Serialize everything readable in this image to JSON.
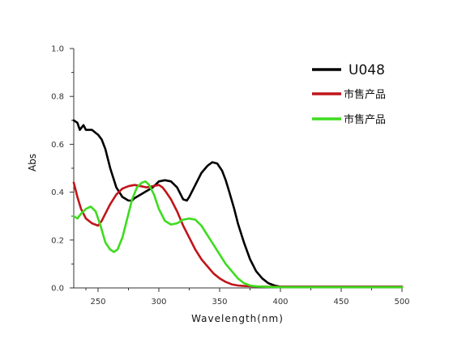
{
  "chart_data": {
    "type": "line",
    "xlabel": "Wavelength(nm)",
    "ylabel": "Abs",
    "xlim": [
      230,
      500
    ],
    "ylim": [
      0.0,
      1.0
    ],
    "xticks": [
      250,
      300,
      350,
      400,
      450,
      500
    ],
    "xtick_labels": [
      "250",
      "300",
      "350",
      "400",
      "450",
      "500"
    ],
    "yticks": [
      0.0,
      0.2,
      0.4,
      0.6,
      0.8,
      1.0
    ],
    "ytick_labels": [
      "0.0",
      "0.2",
      "0.4",
      "0.6",
      "0.8",
      "1.0"
    ],
    "grid": false,
    "legend_position": "top-right",
    "series": [
      {
        "name": "U048",
        "color": "#000000",
        "x": [
          230,
          233,
          235,
          238,
          240,
          245,
          250,
          253,
          256,
          260,
          265,
          270,
          275,
          278,
          280,
          285,
          290,
          295,
          300,
          305,
          310,
          315,
          320,
          323,
          325,
          330,
          335,
          340,
          344,
          348,
          352,
          355,
          358,
          362,
          365,
          370,
          375,
          380,
          385,
          390,
          395,
          400,
          410,
          420,
          430,
          450,
          470,
          490,
          500
        ],
        "y": [
          0.7,
          0.69,
          0.66,
          0.68,
          0.66,
          0.66,
          0.64,
          0.62,
          0.58,
          0.5,
          0.42,
          0.38,
          0.365,
          0.365,
          0.375,
          0.39,
          0.405,
          0.42,
          0.445,
          0.45,
          0.445,
          0.42,
          0.37,
          0.365,
          0.38,
          0.43,
          0.48,
          0.51,
          0.525,
          0.52,
          0.49,
          0.45,
          0.4,
          0.33,
          0.27,
          0.19,
          0.12,
          0.07,
          0.04,
          0.02,
          0.01,
          0.005,
          0.005,
          0.005,
          0.005,
          0.005,
          0.005,
          0.005,
          0.005
        ]
      },
      {
        "name": "市售产品",
        "color": "#c0151b",
        "x": [
          230,
          233,
          236,
          240,
          245,
          250,
          253,
          256,
          260,
          265,
          270,
          275,
          280,
          285,
          290,
          295,
          300,
          303,
          306,
          310,
          315,
          320,
          325,
          330,
          335,
          340,
          345,
          350,
          355,
          360,
          365,
          370,
          380,
          390,
          400,
          420,
          450,
          480,
          500
        ],
        "y": [
          0.44,
          0.38,
          0.33,
          0.29,
          0.27,
          0.26,
          0.28,
          0.31,
          0.35,
          0.39,
          0.415,
          0.425,
          0.43,
          0.425,
          0.42,
          0.425,
          0.43,
          0.42,
          0.4,
          0.37,
          0.32,
          0.26,
          0.21,
          0.16,
          0.12,
          0.09,
          0.06,
          0.04,
          0.025,
          0.015,
          0.01,
          0.008,
          0.006,
          0.005,
          0.005,
          0.005,
          0.005,
          0.005,
          0.005
        ]
      },
      {
        "name": "市售产品",
        "color": "#3ddc1e",
        "x": [
          230,
          233,
          236,
          240,
          244,
          248,
          252,
          256,
          260,
          263,
          266,
          270,
          274,
          278,
          282,
          286,
          289,
          292,
          296,
          300,
          305,
          310,
          315,
          320,
          325,
          330,
          335,
          340,
          345,
          350,
          355,
          360,
          365,
          370,
          375,
          380,
          390,
          400,
          420,
          450,
          480,
          500
        ],
        "y": [
          0.3,
          0.29,
          0.31,
          0.33,
          0.34,
          0.32,
          0.26,
          0.19,
          0.16,
          0.15,
          0.16,
          0.21,
          0.29,
          0.37,
          0.42,
          0.44,
          0.445,
          0.43,
          0.39,
          0.33,
          0.28,
          0.265,
          0.27,
          0.285,
          0.29,
          0.285,
          0.26,
          0.22,
          0.18,
          0.14,
          0.1,
          0.07,
          0.04,
          0.02,
          0.01,
          0.006,
          0.004,
          0.003,
          0.003,
          0.003,
          0.003,
          0.003
        ]
      }
    ]
  }
}
